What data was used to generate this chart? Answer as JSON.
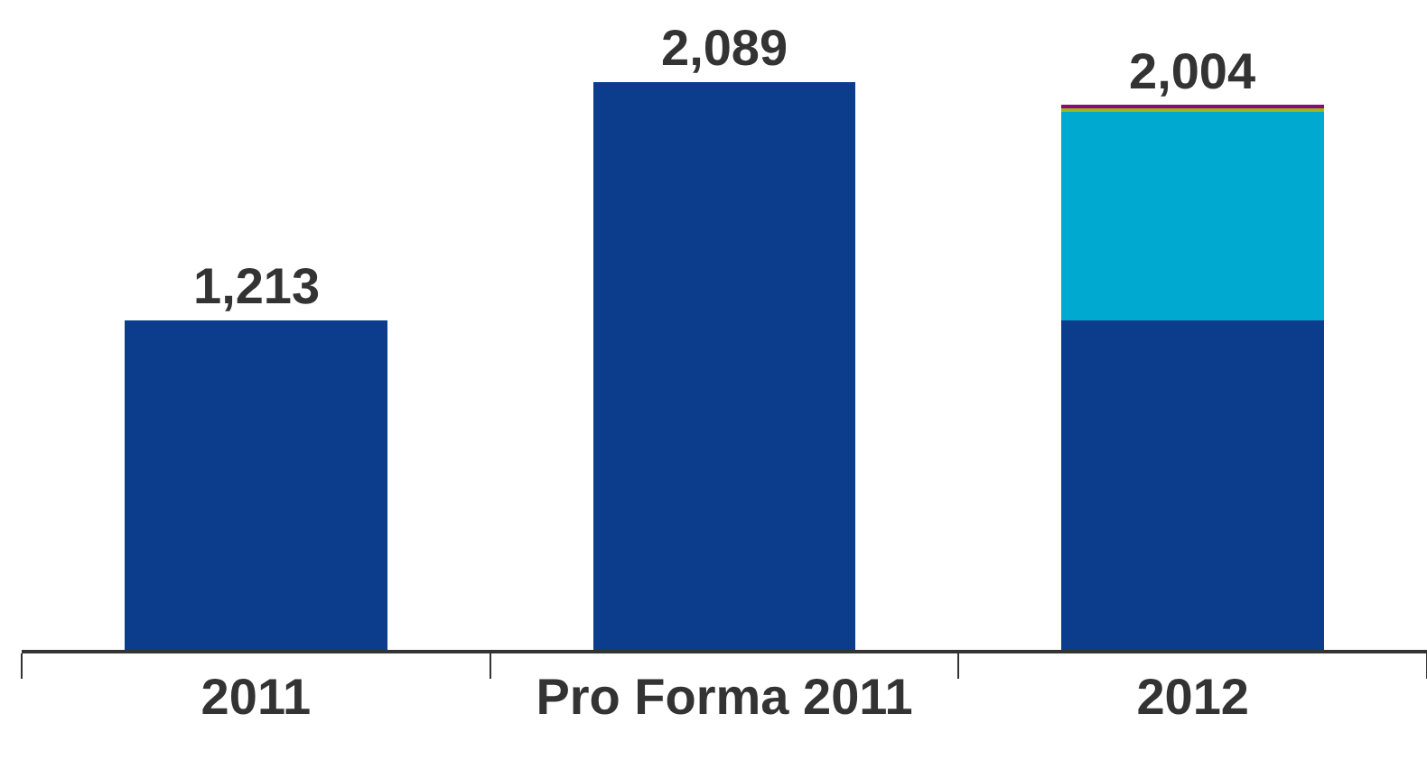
{
  "chart_data": {
    "type": "bar",
    "stacked": true,
    "categories": [
      "2011",
      "Pro Forma 2011",
      "2012"
    ],
    "series": [
      {
        "color": "#0b3d8c",
        "values": [
          1213,
          2089,
          1213
        ],
        "value_labels": [
          "1,213",
          "2,089",
          null
        ]
      },
      {
        "color": "#00a9cf",
        "values": [
          null,
          null,
          773
        ]
      },
      {
        "color": "#9bb51a",
        "values": [
          null,
          null,
          9
        ]
      },
      {
        "color": "#8a0a78",
        "values": [
          null,
          null,
          9
        ]
      }
    ],
    "totals": [
      null,
      null,
      "2,004"
    ],
    "tick_labels": "x"
  }
}
